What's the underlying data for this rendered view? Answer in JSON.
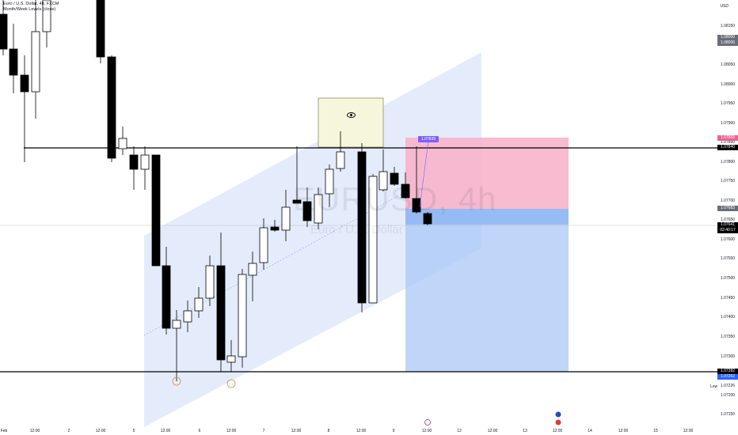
{
  "header": {
    "title": "Euro / U.S. Dollar, 4h, FXCM",
    "subtitle": "Month/Week Levels (close)"
  },
  "currency": "USD",
  "watermark": {
    "symbol": "EURUSD, 4h",
    "name": "Euro / U.S. Dollar"
  },
  "price_axis": {
    "ticks": [
      "1.08150",
      "1.08100",
      "1.08050",
      "1.08000",
      "1.07950",
      "1.07900",
      "1.07850",
      "1.07800",
      "1.07750",
      "1.07700",
      "1.07650",
      "1.07600",
      "1.07550",
      "1.07500",
      "1.07450",
      "1.07400",
      "1.07350",
      "1.07300",
      "1.07250",
      "1.07200",
      "1.07150"
    ],
    "tags": {
      "top_grey": "1.08000",
      "top_grey_sub": "1.08006",
      "pink": "1.07865",
      "resistance": "1.07840",
      "entry": "1.07683",
      "current": "1.07641",
      "countdown": "02:40:17",
      "support": "1.07282",
      "target": "1.07262",
      "low": "1.07226"
    },
    "low_label": "Low"
  },
  "price_marker": "1.07839",
  "time_axis": [
    "Feb",
    "12:00",
    "2",
    "12:00",
    "5",
    "12:00",
    "6",
    "12:00",
    "7",
    "12:00",
    "8",
    "12:00",
    "9",
    "12:00",
    "12",
    "12:00",
    "13",
    "12:00",
    "14",
    "12:00",
    "15",
    "12:00"
  ],
  "colors": {
    "bull": "#ffffff",
    "bear": "#000000",
    "channel": "#dbe5fb",
    "stop_zone": "#f7b4cb",
    "target_zone": "#a9c8f7",
    "box": "#f6f6dc",
    "marker": "#7b61ff"
  },
  "icons": [
    "eye-icon",
    "event-icon",
    "flag-icon",
    "circle-marker-icon"
  ]
}
